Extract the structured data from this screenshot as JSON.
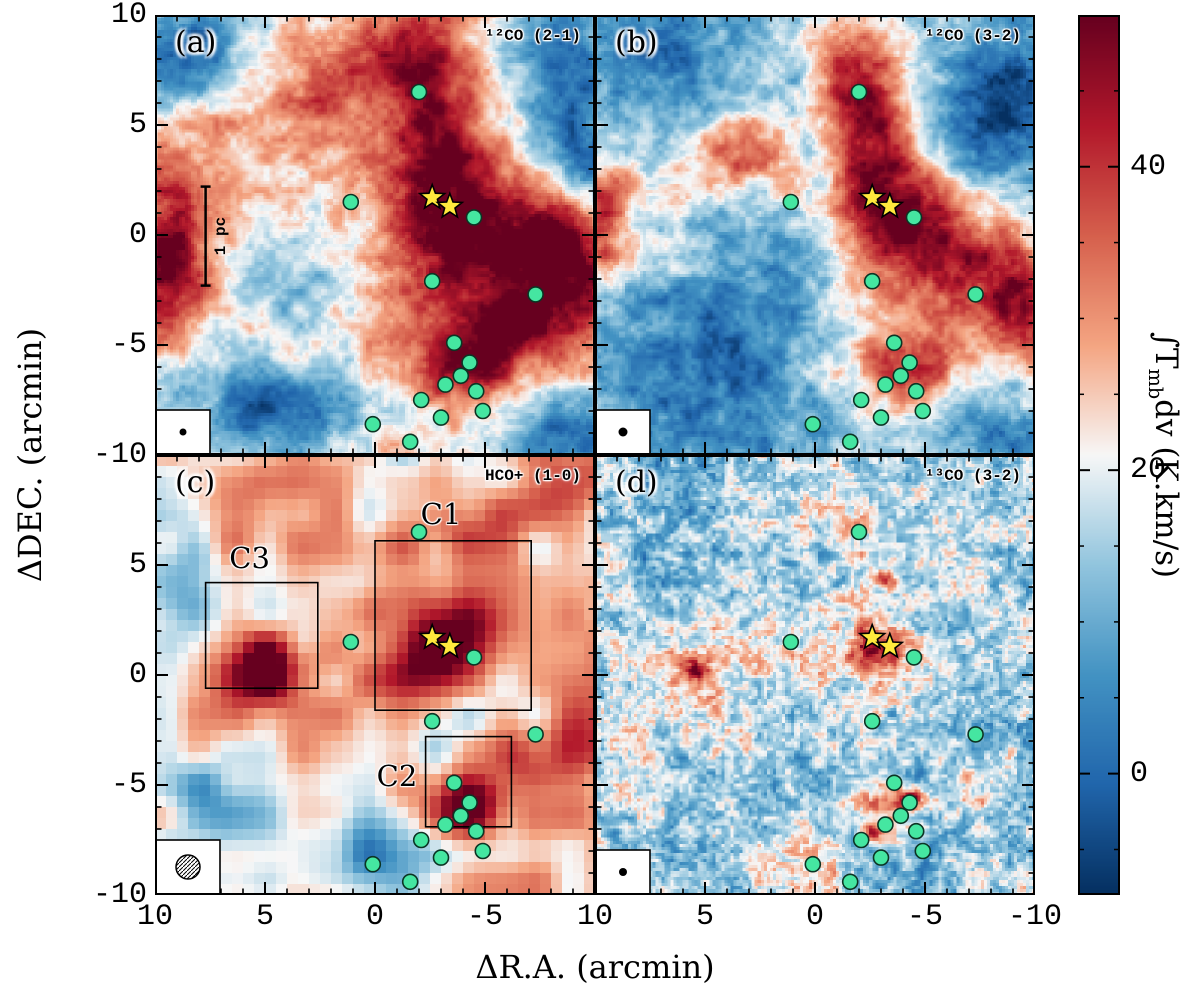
{
  "chart_data": {
    "type": "heatmap",
    "xlabel": "ΔR.A. (arcmin)",
    "ylabel": "ΔDEC. (arcmin)",
    "x_range": [
      10,
      -10
    ],
    "y_range": [
      -10,
      10
    ],
    "x_ticks_left_panel": [
      "10",
      "5",
      "0",
      "-5"
    ],
    "x_ticks_right_panel": [
      "10",
      "5",
      "0",
      "-5",
      "-10"
    ],
    "y_ticks_top_panel": [
      "10",
      "5",
      "0",
      "-5",
      "-10"
    ],
    "y_ticks_bottom_panel": [
      "5",
      "0",
      "-5",
      "-10"
    ],
    "colorbar": {
      "label_pre": "∫T",
      "label_sub": "mb",
      "label_post": "dv (K.km/s)",
      "label_text": "∫T_mb dv (K.km/s)",
      "range": [
        -8,
        50
      ],
      "ticks": [
        {
          "value": 40,
          "label": "40"
        },
        {
          "value": 20,
          "label": "20"
        },
        {
          "value": 0,
          "label": "0"
        }
      ],
      "colormap": "RdBu_r",
      "stops": [
        [
          0.0,
          [
            5,
            48,
            97
          ]
        ],
        [
          0.125,
          [
            33,
            102,
            172
          ]
        ],
        [
          0.25,
          [
            67,
            147,
            195
          ]
        ],
        [
          0.375,
          [
            146,
            197,
            222
          ]
        ],
        [
          0.5,
          [
            247,
            247,
            247
          ]
        ],
        [
          0.625,
          [
            244,
            165,
            130
          ]
        ],
        [
          0.75,
          [
            214,
            96,
            77
          ]
        ],
        [
          0.875,
          [
            178,
            24,
            43
          ]
        ],
        [
          1.0,
          [
            103,
            0,
            31
          ]
        ]
      ]
    },
    "panels": [
      {
        "id": "a",
        "letter": "(a)",
        "line_label": "¹²CO (2-1)",
        "beam": {
          "type": "dot",
          "r": 3.5
        },
        "render": {
          "seed": 11,
          "res": 146,
          "base": 0.55,
          "octaves": [
            {
              "f": 4,
              "a": 0.07
            },
            {
              "f": 11,
              "a": 0.08
            },
            {
              "f": 26,
              "a": 0.08
            },
            {
              "f": 78,
              "a": 0.055
            }
          ],
          "blobs": [
            {
              "x": 8.5,
              "y": 8.5,
              "sx": 2.2,
              "sy": 1.8,
              "a": -0.38
            },
            {
              "x": -8.8,
              "y": 7,
              "sx": 1.8,
              "sy": 2.8,
              "a": -0.42
            },
            {
              "x": 4.5,
              "y": -7.8,
              "sx": 3.8,
              "sy": 2.2,
              "a": -0.38
            },
            {
              "x": -9,
              "y": -9,
              "sx": 2,
              "sy": 1.8,
              "a": -0.3
            },
            {
              "x": 3.5,
              "y": -1.8,
              "sx": 2.6,
              "sy": 2.0,
              "a": -0.18
            },
            {
              "x": -9.6,
              "y": 3.2,
              "sx": 1.1,
              "sy": 1.6,
              "a": -0.3
            },
            {
              "x": 2,
              "y": 7,
              "sx": 3,
              "sy": 1.3,
              "a": 0.22,
              "rot": -0.35
            },
            {
              "x": -2.2,
              "y": 7.5,
              "sx": 1.4,
              "sy": 2.4,
              "a": 0.36
            },
            {
              "x": -2.8,
              "y": 3.2,
              "sx": 1.6,
              "sy": 2.6,
              "a": 0.34
            },
            {
              "x": -5.5,
              "y": 0.2,
              "sx": 2.6,
              "sy": 2.4,
              "a": 0.42
            },
            {
              "x": -9,
              "y": -1.5,
              "sx": 1.6,
              "sy": 2.2,
              "a": 0.36
            },
            {
              "x": -3.8,
              "y": -5.8,
              "sx": 1.9,
              "sy": 1.4,
              "a": 0.4
            },
            {
              "x": -6.5,
              "y": -4.2,
              "sx": 1.6,
              "sy": 1.4,
              "a": 0.28
            },
            {
              "x": 9.5,
              "y": -2,
              "sx": 1.3,
              "sy": 2.6,
              "a": 0.42
            },
            {
              "x": 8,
              "y": 1.5,
              "sx": 1.6,
              "sy": 1.6,
              "a": 0.25
            },
            {
              "x": 4.5,
              "y": -5,
              "sx": 2.2,
              "sy": 0.9,
              "a": 0.2,
              "rot": 0.45
            }
          ]
        }
      },
      {
        "id": "b",
        "letter": "(b)",
        "line_label": "¹²CO (3-2)",
        "beam": {
          "type": "dot",
          "r": 4.5
        },
        "render": {
          "seed": 22,
          "res": 146,
          "base": 0.46,
          "octaves": [
            {
              "f": 4,
              "a": 0.06
            },
            {
              "f": 12,
              "a": 0.08
            },
            {
              "f": 30,
              "a": 0.08
            },
            {
              "f": 80,
              "a": 0.06
            }
          ],
          "blobs": [
            {
              "x": 7.5,
              "y": 8,
              "sx": 2.8,
              "sy": 2.2,
              "a": -0.32
            },
            {
              "x": -8.6,
              "y": 6,
              "sx": 1.9,
              "sy": 3.2,
              "a": -0.38
            },
            {
              "x": 4,
              "y": -6,
              "sx": 4,
              "sy": 3,
              "a": -0.32
            },
            {
              "x": -8,
              "y": -8.5,
              "sx": 2.2,
              "sy": 1.8,
              "a": -0.22
            },
            {
              "x": 2,
              "y": -1,
              "sx": 2.2,
              "sy": 2,
              "a": -0.18
            },
            {
              "x": -2,
              "y": 7.2,
              "sx": 1.3,
              "sy": 2.2,
              "a": 0.42
            },
            {
              "x": -2.6,
              "y": 3.5,
              "sx": 1.2,
              "sy": 2,
              "a": 0.3
            },
            {
              "x": -4,
              "y": 0.5,
              "sx": 2.2,
              "sy": 1.9,
              "a": 0.5
            },
            {
              "x": -7.8,
              "y": -1.8,
              "sx": 1.9,
              "sy": 2.1,
              "a": 0.36
            },
            {
              "x": -4,
              "y": -6,
              "sx": 1.9,
              "sy": 1.3,
              "a": 0.42
            },
            {
              "x": 9.6,
              "y": 1,
              "sx": 0.9,
              "sy": 2.2,
              "a": 0.36
            },
            {
              "x": 3.2,
              "y": 3.6,
              "sx": 1.6,
              "sy": 1.2,
              "a": 0.28
            },
            {
              "x": -9.5,
              "y": -4,
              "sx": 1,
              "sy": 1.6,
              "a": 0.3
            }
          ]
        }
      },
      {
        "id": "c",
        "letter": "(c)",
        "line_label": "HCO+ (1-0)",
        "beam": {
          "type": "hatched",
          "r": 12
        },
        "render": {
          "seed": 33,
          "res": 40,
          "base": 0.54,
          "octaves": [
            {
              "f": 5,
              "a": 0.1
            },
            {
              "f": 13,
              "a": 0.13
            }
          ],
          "blobs": [
            {
              "x": 5,
              "y": 0.3,
              "sx": 1.5,
              "sy": 1.2,
              "a": 0.55
            },
            {
              "x": -2.8,
              "y": 1.2,
              "sx": 1.9,
              "sy": 1.3,
              "a": 0.6,
              "rot": -0.5
            },
            {
              "x": -1.2,
              "y": 3.5,
              "sx": 1.1,
              "sy": 1.1,
              "a": 0.22
            },
            {
              "x": -4.2,
              "y": -6,
              "sx": 1.3,
              "sy": 1,
              "a": 0.5
            },
            {
              "x": -6.8,
              "y": -3.6,
              "sx": 1.2,
              "sy": 0.9,
              "a": 0.3
            },
            {
              "x": -8.5,
              "y": 8.5,
              "sx": 1.6,
              "sy": 1.4,
              "a": 0.26
            },
            {
              "x": -9.2,
              "y": -2.5,
              "sx": 1,
              "sy": 1.6,
              "a": 0.3
            },
            {
              "x": 6,
              "y": 7.5,
              "sx": 1.6,
              "sy": 1,
              "a": 0.2
            },
            {
              "x": -4,
              "y": 7,
              "sx": 1.4,
              "sy": 0.9,
              "a": 0.18
            },
            {
              "x": 0.5,
              "y": -8.2,
              "sx": 2.2,
              "sy": 1.3,
              "a": -0.3
            },
            {
              "x": 7.5,
              "y": -6,
              "sx": 1.7,
              "sy": 1.6,
              "a": -0.2
            },
            {
              "x": 9,
              "y": 4,
              "sx": 1.2,
              "sy": 1.4,
              "a": -0.2
            }
          ]
        }
      },
      {
        "id": "d",
        "letter": "(d)",
        "line_label": "¹³CO (3-2)",
        "beam": {
          "type": "dot",
          "r": 4
        },
        "render": {
          "seed": 44,
          "res": 146,
          "base": 0.4,
          "octaves": [
            {
              "f": 8,
              "a": 0.09
            },
            {
              "f": 30,
              "a": 0.12
            },
            {
              "f": 95,
              "a": 0.13
            }
          ],
          "blobs": [
            {
              "x": -2.9,
              "y": 1.3,
              "sx": 1.0,
              "sy": 0.6,
              "a": 0.5,
              "rot": -0.4
            },
            {
              "x": -2.2,
              "y": 4.5,
              "sx": 0.7,
              "sy": 2.2,
              "a": 0.16
            },
            {
              "x": -1.2,
              "y": 7.8,
              "sx": 1.3,
              "sy": 0.9,
              "a": 0.16
            },
            {
              "x": 4.8,
              "y": 0.4,
              "sx": 2.1,
              "sy": 1.3,
              "a": 0.2
            },
            {
              "x": 5.4,
              "y": 0.2,
              "sx": 0.4,
              "sy": 0.3,
              "a": 0.42
            },
            {
              "x": -3.6,
              "y": -6.3,
              "sx": 1.7,
              "sy": 1.1,
              "a": 0.24
            },
            {
              "x": -4.4,
              "y": -5.6,
              "sx": 0.4,
              "sy": 0.3,
              "a": 0.5
            },
            {
              "x": -2.6,
              "y": -7.2,
              "sx": 0.35,
              "sy": 0.3,
              "a": 0.4
            },
            {
              "x": -3.1,
              "y": 4.3,
              "sx": 0.35,
              "sy": 0.3,
              "a": 0.4
            },
            {
              "x": 1.5,
              "y": -9,
              "sx": 1.5,
              "sy": 0.8,
              "a": 0.18
            },
            {
              "x": 8,
              "y": 8,
              "sx": 2,
              "sy": 1.5,
              "a": -0.12
            }
          ]
        }
      }
    ],
    "scale_bar": {
      "label": "1 pc",
      "x_arcmin": 7.7,
      "y_from": 2.2,
      "y_to": -2.3
    },
    "regions": [
      {
        "label": "C1",
        "x1": 0.0,
        "y1": 6.1,
        "x2": -7.1,
        "y2": -1.6,
        "label_x": -3.0,
        "label_y": 7.3
      },
      {
        "label": "C2",
        "x1": -2.3,
        "y1": -2.8,
        "x2": -6.2,
        "y2": -6.9,
        "label_x": -1.0,
        "label_y": -4.6
      },
      {
        "label": "C3",
        "x1": 7.7,
        "y1": 4.2,
        "x2": 2.6,
        "y2": -0.6,
        "label_x": 5.7,
        "label_y": 5.3
      }
    ],
    "sources": {
      "color": "#45e6a1",
      "edge_color": "#0c3424",
      "points": [
        [
          -2.0,
          6.5
        ],
        [
          1.1,
          1.5
        ],
        [
          -4.5,
          0.8
        ],
        [
          -2.6,
          -2.1
        ],
        [
          -7.3,
          -2.7
        ],
        [
          -3.6,
          -4.9
        ],
        [
          -4.3,
          -5.8
        ],
        [
          -3.9,
          -6.4
        ],
        [
          -3.2,
          -6.8
        ],
        [
          -4.6,
          -7.1
        ],
        [
          -2.1,
          -7.5
        ],
        [
          -4.9,
          -8.0
        ],
        [
          -3.0,
          -8.3
        ],
        [
          0.1,
          -8.6
        ],
        [
          -1.6,
          -9.4
        ]
      ]
    },
    "stars": {
      "color": "#ffe93d",
      "points": [
        [
          -2.6,
          1.7
        ],
        [
          -3.4,
          1.3
        ]
      ]
    }
  }
}
